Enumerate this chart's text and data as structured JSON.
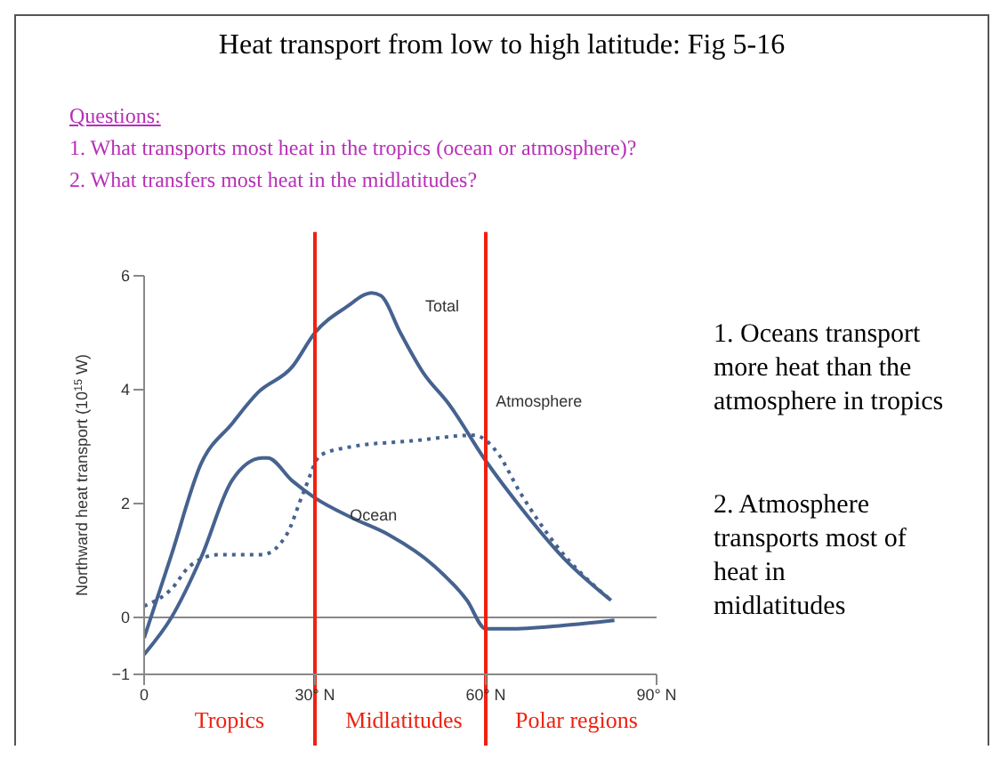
{
  "chart_data": {
    "type": "line",
    "title": "Heat transport from low to high latitude: Fig 5-16",
    "ylabel": "Northward heat transport (10$^{15}$ W)",
    "xlim": [
      0,
      90
    ],
    "xticks": [
      0,
      {
        "value": 30,
        "label": "30° N"
      },
      {
        "value": 60,
        "label": "60° N"
      },
      {
        "value": 90,
        "label": "90° N"
      }
    ],
    "ylim": [
      -1,
      6
    ],
    "yticks": [
      {
        "value": -1,
        "label": "−1"
      },
      0,
      2,
      4,
      6
    ],
    "marker": "none",
    "series": [
      {
        "name": "Total",
        "color": "#46628f",
        "line_style": "solid",
        "x": [
          0,
          4.8,
          10,
          15.4,
          20,
          26,
          30,
          35.5,
          40,
          41.6,
          45,
          49,
          53.5,
          60,
          66,
          73.6,
          82
        ],
        "values": [
          -0.36,
          1.1,
          2.7,
          3.4,
          3.95,
          4.4,
          5.0,
          5.45,
          5.7,
          5.65,
          5.0,
          4.3,
          3.75,
          2.75,
          1.95,
          1.05,
          0.3
        ]
      },
      {
        "name": "Ocean",
        "color": "#46628f",
        "line_style": "solid",
        "x": [
          0,
          4.8,
          10,
          15.4,
          20.7,
          21.7,
          26,
          30,
          36.5,
          43,
          51,
          56.7,
          60,
          64,
          73.6,
          82.6
        ],
        "values": [
          -0.65,
          0,
          1.05,
          2.4,
          2.8,
          2.8,
          2.4,
          2.1,
          1.75,
          1.45,
          0.9,
          0.3,
          -0.2,
          -0.2,
          -0.14,
          -0.05
        ]
      },
      {
        "name": "Atmosphere",
        "color": "#46628f",
        "line_style": "dotted",
        "x": [
          0,
          4.8,
          8,
          13,
          20.7,
          25,
          28,
          31,
          36.5,
          47,
          58,
          62,
          66,
          72.5,
          82
        ],
        "values": [
          0.2,
          0.5,
          0.9,
          1.1,
          1.1,
          1.45,
          2.2,
          2.85,
          3.0,
          3.1,
          3.2,
          2.9,
          2.2,
          1.25,
          0.3
        ]
      }
    ],
    "ref_lines": [
      {
        "axis": "x",
        "value": 30,
        "color": "#ee2211"
      },
      {
        "axis": "x",
        "value": 60,
        "color": "#ee2211"
      }
    ],
    "annotations": [
      "Questions:",
      "1. What transports most heat in the tropics (ocean or atmosphere)?",
      "2. What transfers most heat in the midlatitudes?",
      "Tropics",
      "Midlatitudes",
      "Polar regions",
      "1. Oceans transport more heat than the atmosphere in tropics",
      "2. Atmosphere transports most of heat in midlatitudes"
    ]
  }
}
